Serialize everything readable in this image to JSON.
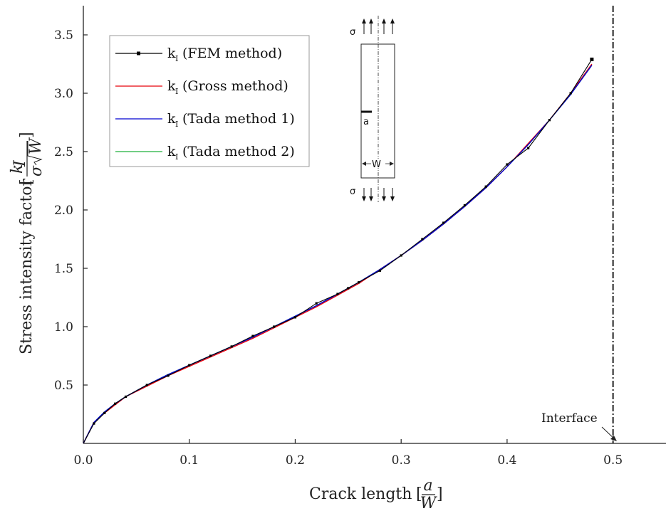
{
  "chart_data": {
    "type": "line",
    "xlabel": "Crack length",
    "xlabel_frac": {
      "num": "a",
      "den": "W"
    },
    "ylabel": "Stress intensity factor",
    "ylabel_frac": {
      "num": "k",
      "num_sub": "I",
      "den_sigma": "σ",
      "den_root": "W"
    },
    "xlim": [
      0.0,
      0.55
    ],
    "ylim": [
      0.0,
      3.75
    ],
    "xticks": [
      0.0,
      0.1,
      0.2,
      0.3,
      0.4,
      0.5
    ],
    "xtick_labels": [
      "0.0",
      "0.1",
      "0.2",
      "0.3",
      "0.4",
      "0.5"
    ],
    "yticks": [
      0.5,
      1.0,
      1.5,
      2.0,
      2.5,
      3.0,
      3.5
    ],
    "ytick_labels": [
      "0.5",
      "1.0",
      "1.5",
      "2.0",
      "2.5",
      "3.0",
      "3.5"
    ],
    "grid": false,
    "legend_position": "top-left",
    "legend_prefix": "k",
    "legend_sub": "I",
    "series": [
      {
        "name": "(FEM method)",
        "color": "#000000",
        "marker": "square",
        "x": [
          0.0,
          0.01,
          0.02,
          0.03,
          0.04,
          0.06,
          0.08,
          0.1,
          0.12,
          0.14,
          0.16,
          0.18,
          0.2,
          0.22,
          0.24,
          0.25,
          0.26,
          0.28,
          0.3,
          0.32,
          0.34,
          0.36,
          0.38,
          0.4,
          0.42,
          0.44,
          0.46,
          0.48
        ],
        "y": [
          0.0,
          0.17,
          0.26,
          0.34,
          0.4,
          0.5,
          0.58,
          0.67,
          0.75,
          0.83,
          0.92,
          1.0,
          1.08,
          1.2,
          1.28,
          1.33,
          1.38,
          1.48,
          1.61,
          1.75,
          1.89,
          2.04,
          2.2,
          2.39,
          2.53,
          2.77,
          3.0,
          3.29
        ]
      },
      {
        "name": "(Gross method)",
        "color": "#e8000b",
        "x": [
          0.0,
          0.01,
          0.02,
          0.03,
          0.04,
          0.06,
          0.08,
          0.1,
          0.12,
          0.14,
          0.16,
          0.18,
          0.2,
          0.22,
          0.24,
          0.26,
          0.28,
          0.3,
          0.32,
          0.34,
          0.36,
          0.38,
          0.4,
          0.42,
          0.44,
          0.46,
          0.48
        ],
        "y": [
          0.0,
          0.18,
          0.26,
          0.33,
          0.4,
          0.49,
          0.58,
          0.66,
          0.74,
          0.82,
          0.9,
          0.99,
          1.08,
          1.17,
          1.27,
          1.37,
          1.49,
          1.61,
          1.74,
          1.88,
          2.03,
          2.19,
          2.37,
          2.57,
          2.77,
          3.0,
          3.25
        ]
      },
      {
        "name": "(Tada method 1)",
        "color": "#0000d0",
        "x": [
          0.0,
          0.01,
          0.02,
          0.03,
          0.04,
          0.06,
          0.08,
          0.1,
          0.12,
          0.14,
          0.16,
          0.18,
          0.2,
          0.22,
          0.24,
          0.26,
          0.28,
          0.3,
          0.32,
          0.34,
          0.36,
          0.38,
          0.4,
          0.42,
          0.44,
          0.46,
          0.48
        ],
        "y": [
          0.0,
          0.18,
          0.27,
          0.34,
          0.4,
          0.5,
          0.59,
          0.67,
          0.75,
          0.83,
          0.91,
          1.0,
          1.09,
          1.18,
          1.28,
          1.38,
          1.49,
          1.61,
          1.74,
          1.88,
          2.03,
          2.19,
          2.37,
          2.56,
          2.77,
          2.99,
          3.24
        ]
      },
      {
        "name": "(Tada method 2)",
        "color": "#1db03a",
        "x": [
          0.0,
          0.01,
          0.02,
          0.03,
          0.04,
          0.06,
          0.08,
          0.1,
          0.12,
          0.14,
          0.16,
          0.18,
          0.2,
          0.22,
          0.24,
          0.26,
          0.28,
          0.3,
          0.32,
          0.34,
          0.36,
          0.38,
          0.4,
          0.42,
          0.44,
          0.46,
          0.48
        ],
        "y": [
          0.0,
          0.18,
          0.27,
          0.34,
          0.4,
          0.5,
          0.59,
          0.67,
          0.75,
          0.83,
          0.91,
          1.0,
          1.09,
          1.18,
          1.28,
          1.38,
          1.49,
          1.61,
          1.74,
          1.88,
          2.03,
          2.19,
          2.37,
          2.56,
          2.77,
          2.99,
          3.24
        ]
      }
    ],
    "interface_line": {
      "x": 0.5,
      "label": "Interface",
      "style": "dash-dot",
      "color": "#222222"
    },
    "inset": {
      "stress_label": "σ",
      "crack_label": "a",
      "width_label": "W"
    }
  }
}
